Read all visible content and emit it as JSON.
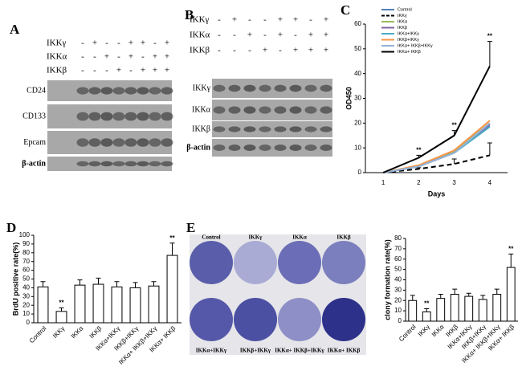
{
  "panel_labels": [
    "A",
    "B",
    "C",
    "D",
    "E"
  ],
  "panel_a": {
    "conditions": [
      {
        "label": "IKKγ",
        "signs": [
          "-",
          "+",
          "-",
          "-",
          "+",
          "+",
          "-",
          "+"
        ]
      },
      {
        "label": "IKKα",
        "signs": [
          "-",
          "-",
          "+",
          "-",
          "+",
          "-",
          "+",
          "+"
        ]
      },
      {
        "label": "IKKβ",
        "signs": [
          "-",
          "-",
          "-",
          "+",
          "-",
          "+",
          "+",
          "+"
        ]
      }
    ],
    "blots": [
      "CD24",
      "CD133",
      "Epcam",
      "β-actin"
    ]
  },
  "panel_b": {
    "conditions": [
      {
        "label": "IKKγ",
        "signs": [
          "-",
          "+",
          "-",
          "-",
          "+",
          "+",
          "-",
          "+"
        ]
      },
      {
        "label": "IKKα",
        "signs": [
          "-",
          "-",
          "+",
          "-",
          "+",
          "-",
          "+",
          "+"
        ]
      },
      {
        "label": "IKKβ",
        "signs": [
          "-",
          "-",
          "-",
          "+",
          "-",
          "+",
          "+",
          "+"
        ]
      }
    ],
    "blots": [
      "IKKγ",
      "IKKα",
      "IKKβ",
      "β-actin"
    ]
  },
  "panel_e_images": {
    "labels": [
      "Control",
      "IKKγ",
      "IKKα",
      "IKKβ",
      "IKKα+IKKγ",
      "IKKβ+IKKγ",
      "IKKα+ IKKβ+IKKγ",
      "IKKα+ IKKβ"
    ]
  },
  "chart_data": [
    {
      "type": "line",
      "x_label": "Days",
      "y_label": "OD450",
      "categories": [
        "1",
        "2",
        "3",
        "4"
      ],
      "ylim": [
        0,
        60
      ],
      "yticks": [
        0,
        10,
        20,
        30,
        40,
        50,
        60
      ],
      "legend": "top-left",
      "series": [
        {
          "name": "Control",
          "color": "#4f81bd",
          "values": [
            0,
            2.5,
            8,
            19
          ]
        },
        {
          "name": "IKKγ",
          "color": "#000000",
          "line_style": "dashed",
          "values": [
            0,
            1.5,
            3.5,
            7
          ],
          "errors": [
            0,
            0.5,
            2,
            5
          ]
        },
        {
          "name": "IKKα",
          "color": "#9bbb59",
          "values": [
            0,
            2.5,
            8.5,
            20
          ]
        },
        {
          "name": "IKKβ",
          "color": "#8064a2",
          "values": [
            0,
            2.5,
            8,
            19.5
          ]
        },
        {
          "name": "IKKα+IKKγ",
          "color": "#4bacc6",
          "values": [
            0,
            2.5,
            8,
            18.5
          ]
        },
        {
          "name": "IKKβ+IKKγ",
          "color": "#f79646",
          "values": [
            0,
            3,
            9,
            21
          ]
        },
        {
          "name": "IKKα+ IKKβ+IKKγ",
          "color": "#95b3d7",
          "values": [
            0,
            2.5,
            8,
            20
          ]
        },
        {
          "name": "IKKα+ IKKβ",
          "color": "#000000",
          "values": [
            0,
            6,
            15,
            43
          ],
          "errors": [
            0,
            1,
            2,
            10
          ],
          "significance_labels": [
            null,
            "**",
            "**",
            "**"
          ]
        }
      ]
    },
    {
      "type": "bar",
      "y_label": "BrdU positive rate(%)",
      "categories": [
        "Control",
        "IKKγ",
        "IKKα",
        "IKKβ",
        "IKKα+IKKγ",
        "IKKβ+IKKγ",
        "IKKα+ IKKβ+IKKγ",
        "IKKα+ IKKβ"
      ],
      "values": [
        41,
        13,
        43,
        44,
        41,
        40,
        42,
        77
      ],
      "errors": [
        6,
        4,
        6,
        7,
        6,
        6,
        5,
        14
      ],
      "significance_labels": [
        null,
        "**",
        null,
        null,
        null,
        null,
        null,
        "**"
      ],
      "color": "#ffffff",
      "ylim": [
        0,
        100
      ],
      "yticks": [
        0,
        10,
        20,
        30,
        40,
        50,
        60,
        70,
        80,
        90,
        100
      ]
    },
    {
      "type": "bar",
      "y_label": "clony formation rate(%)",
      "categories": [
        "Control",
        "IKKγ",
        "IKKα",
        "IKKβ",
        "IKKα+IKKγ",
        "IKKβ+IKKγ",
        "IKKα+ IKKβ+IKKγ",
        "IKKα+ IKKβ"
      ],
      "values": [
        20,
        9,
        22,
        26,
        24,
        21,
        26,
        52
      ],
      "errors": [
        5,
        3,
        4,
        5,
        3,
        4,
        5,
        13
      ],
      "significance_labels": [
        null,
        "**",
        null,
        null,
        null,
        null,
        null,
        "**"
      ],
      "color": "#ffffff",
      "ylim": [
        0,
        80
      ],
      "yticks": [
        0,
        10,
        20,
        30,
        40,
        50,
        60,
        70,
        80
      ]
    }
  ]
}
